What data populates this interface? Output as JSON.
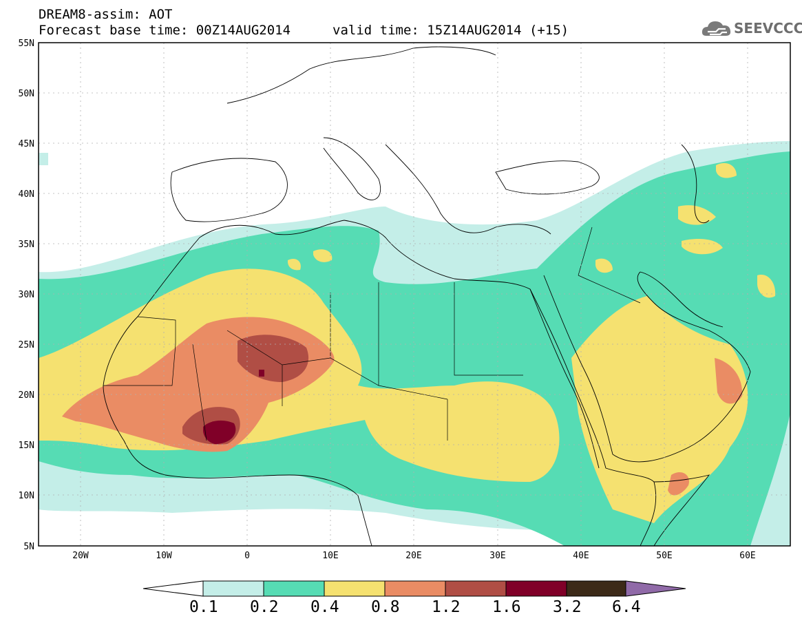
{
  "header": {
    "title_line1": "DREAM8-assim: AOT",
    "title_line2": "Forecast base time: 00Z14AUG2014",
    "valid_time": "valid time: 15Z14AUG2014 (+15)"
  },
  "logo": {
    "text": "SEEVCCC",
    "icon": "cloud-icon"
  },
  "map": {
    "lat_labels": [
      "55N",
      "50N",
      "45N",
      "40N",
      "35N",
      "30N",
      "25N",
      "20N",
      "15N",
      "10N",
      "5N"
    ],
    "lon_labels": [
      "20W",
      "10W",
      "0",
      "10E",
      "20E",
      "30E",
      "40E",
      "50E",
      "60E"
    ]
  },
  "legend": {
    "labels": [
      "0.1",
      "0.2",
      "0.4",
      "0.8",
      "1.2",
      "1.6",
      "3.2",
      "6.4"
    ],
    "colors": [
      "#ffffff",
      "#c4eee8",
      "#56dcb4",
      "#f5e170",
      "#ea8c64",
      "#b04e45",
      "#800028",
      "#3c2a18",
      "#906aa8"
    ]
  },
  "palette": {
    "lt": "#c4eee8",
    "tq": "#56dcb4",
    "yl": "#f5e170",
    "or": "#ea8c64",
    "br": "#b04e45",
    "mr": "#800028"
  }
}
